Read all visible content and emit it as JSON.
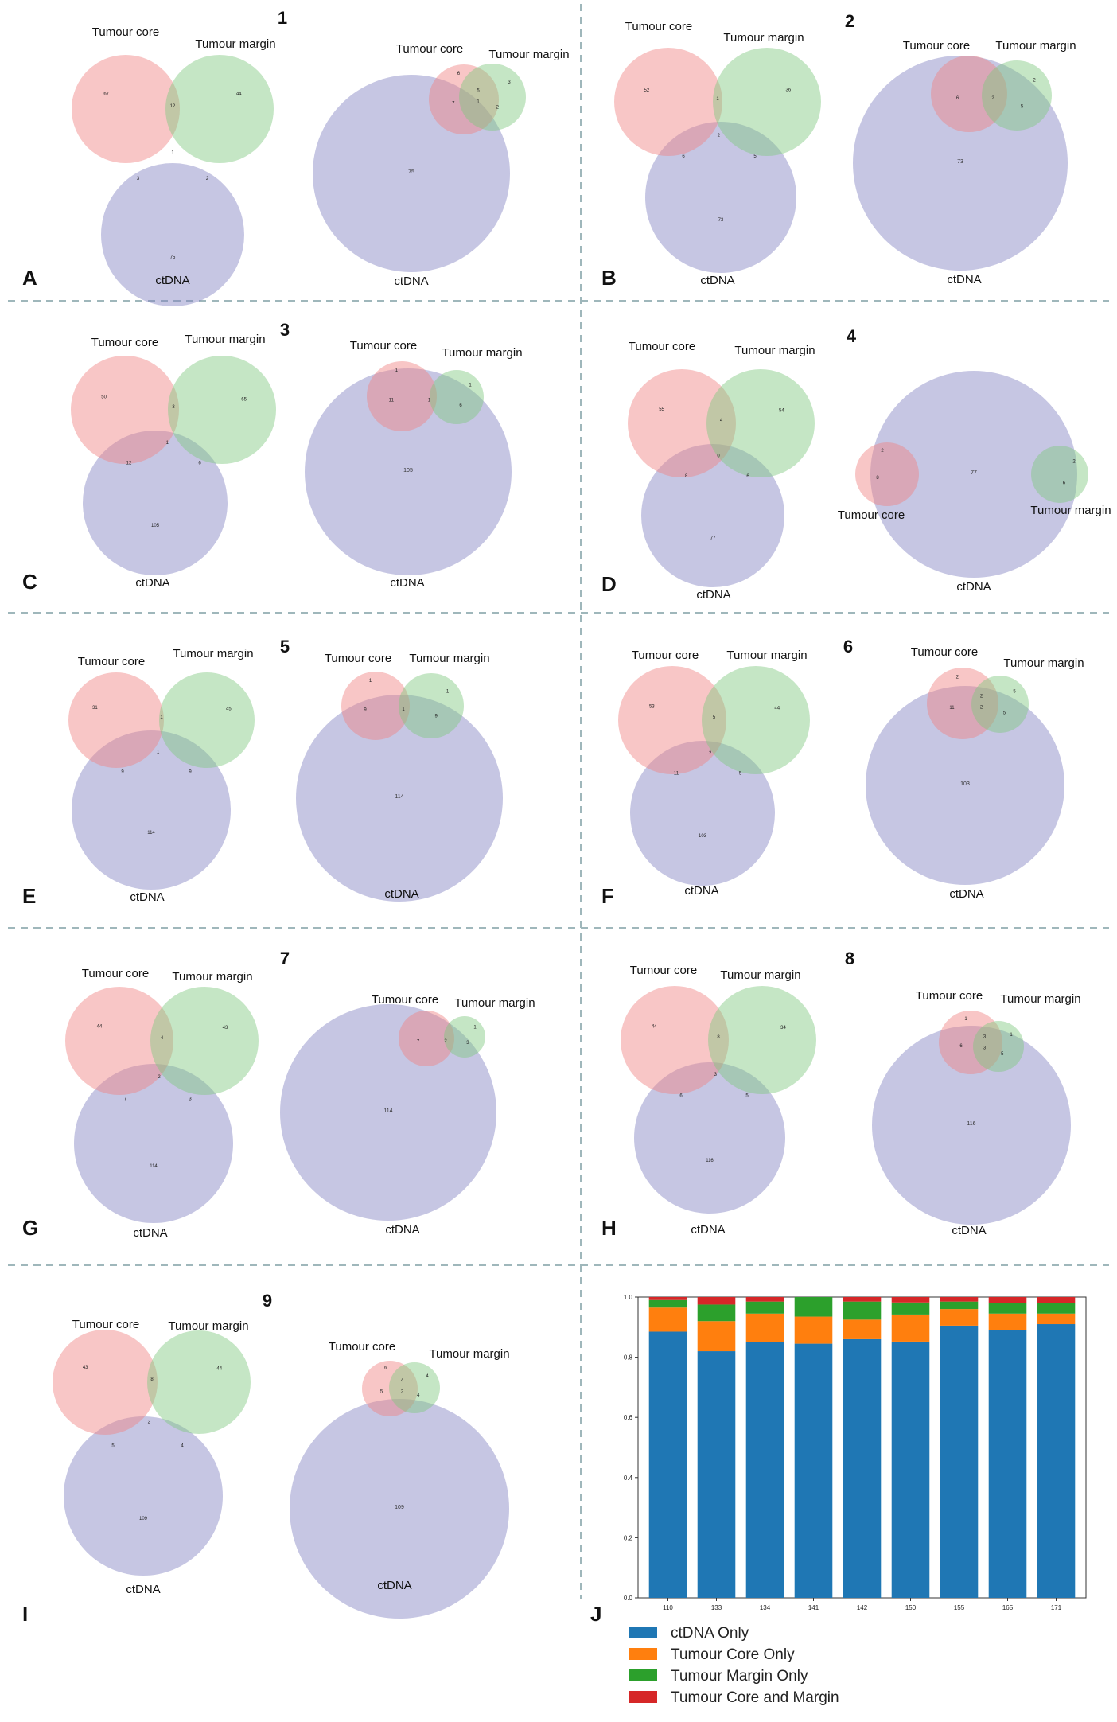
{
  "set_labels": {
    "core": "Tumour core",
    "margin": "Tumour margin",
    "ctdna": "ctDNA"
  },
  "colors": {
    "core": "#f08080",
    "margin": "#7ec87e",
    "ctdna": "#8080c0",
    "bar_ctdna": "#1f77b4",
    "bar_core": "#ff7f0e",
    "bar_margin": "#2ca02c",
    "bar_both": "#d62728",
    "divider": "#9fb7bb"
  },
  "panels": [
    {
      "letter": "A",
      "index": "1",
      "venn3": {
        "core_only": "67",
        "margin_only": "44",
        "core_margin": "12",
        "center": "1",
        "core_ctdna": "3",
        "margin_ctdna": "2",
        "ctdna_only": "75"
      },
      "venn_ct": {
        "core_only": "6",
        "margin_only": "3",
        "core_margin": "5",
        "center": "1",
        "core_ctdna": "7",
        "margin_ctdna": "2",
        "ctdna_only": "75"
      }
    },
    {
      "letter": "B",
      "index": "2",
      "venn3": {
        "core_only": "52",
        "margin_only": "36",
        "core_margin": "1",
        "center": "2",
        "core_ctdna": "6",
        "margin_ctdna": "5",
        "ctdna_only": "73"
      },
      "venn_ct": {
        "core_only": "",
        "margin_only": "2",
        "core_margin": "",
        "center": "2",
        "core_ctdna": "6",
        "margin_ctdna": "5",
        "ctdna_only": "73"
      }
    },
    {
      "letter": "C",
      "index": "3",
      "venn3": {
        "core_only": "50",
        "margin_only": "65",
        "core_margin": "3",
        "center": "1",
        "core_ctdna": "12",
        "margin_ctdna": "6",
        "ctdna_only": "105"
      },
      "venn_ct": {
        "core_only": "1",
        "margin_only": "1",
        "core_margin": "",
        "center": "1",
        "core_ctdna": "11",
        "margin_ctdna": "6",
        "ctdna_only": "105"
      }
    },
    {
      "letter": "D",
      "index": "4",
      "venn3": {
        "core_only": "55",
        "margin_only": "54",
        "core_margin": "4",
        "center": "0",
        "core_ctdna": "8",
        "margin_ctdna": "6",
        "ctdna_only": "77"
      },
      "venn_ct": {
        "core_only": "2",
        "margin_only": "2",
        "core_margin": "",
        "center": "",
        "core_ctdna": "8",
        "margin_ctdna": "6",
        "ctdna_only": "77"
      }
    },
    {
      "letter": "E",
      "index": "5",
      "venn3": {
        "core_only": "31",
        "margin_only": "45",
        "core_margin": "1",
        "center": "1",
        "core_ctdna": "9",
        "margin_ctdna": "9",
        "ctdna_only": "114"
      },
      "venn_ct": {
        "core_only": "1",
        "margin_only": "1",
        "core_margin": "",
        "center": "1",
        "core_ctdna": "9",
        "margin_ctdna": "9",
        "ctdna_only": "114"
      }
    },
    {
      "letter": "F",
      "index": "6",
      "venn3": {
        "core_only": "53",
        "margin_only": "44",
        "core_margin": "5",
        "center": "2",
        "core_ctdna": "11",
        "margin_ctdna": "5",
        "ctdna_only": "103"
      },
      "venn_ct": {
        "core_only": "2",
        "margin_only": "5",
        "core_margin": "2",
        "center": "2",
        "core_ctdna": "11",
        "margin_ctdna": "5",
        "ctdna_only": "103"
      }
    },
    {
      "letter": "G",
      "index": "7",
      "venn3": {
        "core_only": "44",
        "margin_only": "43",
        "core_margin": "4",
        "center": "2",
        "core_ctdna": "7",
        "margin_ctdna": "3",
        "ctdna_only": "114"
      },
      "venn_ct": {
        "core_only": "",
        "margin_only": "1",
        "core_margin": "",
        "center": "2",
        "core_ctdna": "7",
        "margin_ctdna": "3",
        "ctdna_only": "114"
      }
    },
    {
      "letter": "H",
      "index": "8",
      "venn3": {
        "core_only": "44",
        "margin_only": "34",
        "core_margin": "8",
        "center": "3",
        "core_ctdna": "6",
        "margin_ctdna": "5",
        "ctdna_only": "116"
      },
      "venn_ct": {
        "core_only": "1",
        "margin_only": "1",
        "core_margin": "3",
        "center": "3",
        "core_ctdna": "6",
        "margin_ctdna": "5",
        "ctdna_only": "116"
      }
    },
    {
      "letter": "I",
      "index": "9",
      "venn3": {
        "core_only": "43",
        "margin_only": "44",
        "core_margin": "8",
        "center": "2",
        "core_ctdna": "5",
        "margin_ctdna": "4",
        "ctdna_only": "109"
      },
      "venn_ct": {
        "core_only": "6",
        "margin_only": "4",
        "core_margin": "4",
        "center": "2",
        "core_ctdna": "5",
        "margin_ctdna": "4",
        "ctdna_only": "109"
      }
    }
  ],
  "chart_letter": "J",
  "chart_data": {
    "type": "bar",
    "stacked": true,
    "categories": [
      "110",
      "133",
      "134",
      "141",
      "142",
      "150",
      "155",
      "165",
      "171"
    ],
    "series": [
      {
        "name": "ctDNA Only",
        "values": [
          0.885,
          0.82,
          0.85,
          0.845,
          0.86,
          0.852,
          0.905,
          0.89,
          0.91
        ]
      },
      {
        "name": "Tumour Core Only",
        "values": [
          0.08,
          0.1,
          0.095,
          0.09,
          0.065,
          0.09,
          0.055,
          0.055,
          0.035
        ]
      },
      {
        "name": "Tumour Margin Only",
        "values": [
          0.025,
          0.055,
          0.04,
          0.065,
          0.06,
          0.04,
          0.025,
          0.035,
          0.035
        ]
      },
      {
        "name": "Tumour Core and Margin",
        "values": [
          0.01,
          0.025,
          0.015,
          0.0,
          0.015,
          0.018,
          0.015,
          0.02,
          0.02
        ]
      }
    ],
    "ylim": [
      0,
      1.0
    ],
    "yticks": [
      "0.0",
      "0.2",
      "0.4",
      "0.6",
      "0.8",
      "1.0"
    ],
    "legend": "below"
  }
}
